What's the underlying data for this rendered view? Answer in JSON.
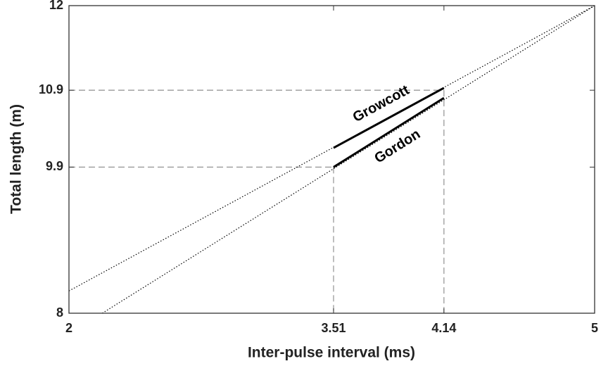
{
  "chart_data": {
    "type": "line",
    "xlabel": "Inter-pulse interval (ms)",
    "ylabel": "Total length (m)",
    "xlim": [
      2,
      5
    ],
    "ylim": [
      8,
      12
    ],
    "xticks": [
      2,
      3.51,
      4.14,
      5
    ],
    "yticks": [
      8,
      9.9,
      10.9,
      12
    ],
    "series": [
      {
        "style": "dotted",
        "color": "#000000",
        "x": [
          2,
          5
        ],
        "values": [
          8.29,
          12
        ]
      },
      {
        "style": "dotted",
        "color": "#000000",
        "x": [
          2.19,
          5
        ],
        "values": [
          8,
          12
        ]
      },
      {
        "name": "Growcott",
        "style": "solid",
        "color": "#000000",
        "x": [
          3.51,
          4.14
        ],
        "values": [
          10.15,
          10.93
        ]
      },
      {
        "name": "Gordon",
        "style": "solid",
        "color": "#000000",
        "x": [
          3.51,
          4.14
        ],
        "values": [
          9.9,
          10.8
        ]
      }
    ],
    "guides": [
      {
        "x": 3.51,
        "y": 9.9
      },
      {
        "x": 4.14,
        "y": 10.9
      }
    ],
    "guide_color": "#999999"
  }
}
